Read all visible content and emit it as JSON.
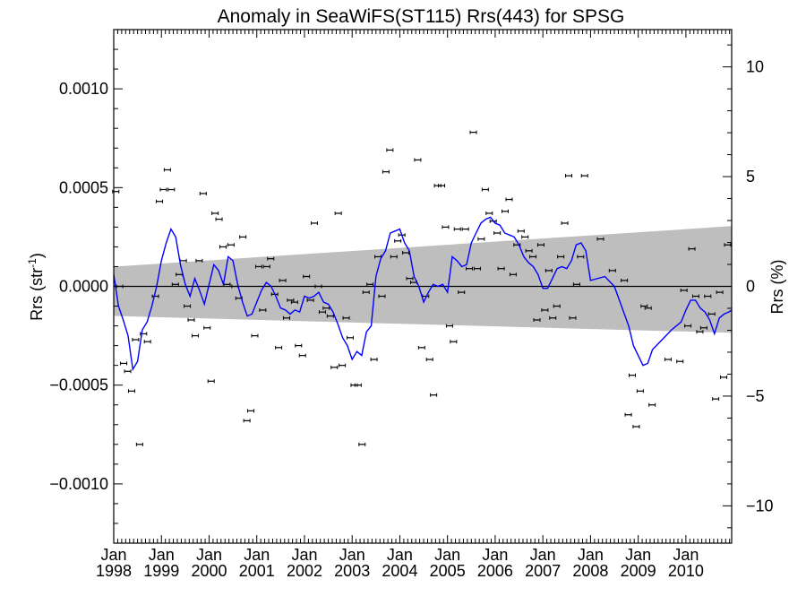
{
  "chart_data": {
    "type": "scatter",
    "title": "Anomaly in SeaWiFS(ST115) Rrs(443) for SPSG",
    "ylabel_left": "Rrs (str",
    "ylabel_left_sup": "-1",
    "ylabel_left_close": ")",
    "ylabel_right": "Rrs (%)",
    "xlim": [
      1998.0,
      2010.96
    ],
    "ylim_left": [
      -0.0013,
      0.0013
    ],
    "ylim_right": [
      -11.7,
      11.7
    ],
    "grid": false,
    "legend": "none",
    "colors": {
      "running_mean": "#0000ff",
      "uncertainty_band": "#bebebe",
      "points": "#000000",
      "zero_line": "#000000"
    },
    "x_ticks": [
      {
        "month": "Jan",
        "year": "1998",
        "x": 1998.0
      },
      {
        "month": "Jan",
        "year": "1999",
        "x": 1999.0
      },
      {
        "month": "Jan",
        "year": "2000",
        "x": 2000.0
      },
      {
        "month": "Jan",
        "year": "2001",
        "x": 2001.0
      },
      {
        "month": "Jan",
        "year": "2002",
        "x": 2002.0
      },
      {
        "month": "Jan",
        "year": "2003",
        "x": 2003.0
      },
      {
        "month": "Jan",
        "year": "2004",
        "x": 2004.0
      },
      {
        "month": "Jan",
        "year": "2005",
        "x": 2005.0
      },
      {
        "month": "Jan",
        "year": "2006",
        "x": 2006.0
      },
      {
        "month": "Jan",
        "year": "2007",
        "x": 2007.0
      },
      {
        "month": "Jan",
        "year": "2008",
        "x": 2008.0
      },
      {
        "month": "Jan",
        "year": "2009",
        "x": 2009.0
      },
      {
        "month": "Jan",
        "year": "2010",
        "x": 2010.0
      }
    ],
    "y_ticks_left": [
      {
        "label": "0.0010",
        "value": 0.001
      },
      {
        "label": "0.0005",
        "value": 0.0005
      },
      {
        "label": "0.0000",
        "value": 0.0
      },
      {
        "label": "−0.0005",
        "value": -0.0005
      },
      {
        "label": "−0.0010",
        "value": -0.001
      }
    ],
    "y_ticks_right": [
      {
        "label": "10",
        "value": 10
      },
      {
        "label": "5",
        "value": 5
      },
      {
        "label": "0",
        "value": 0
      },
      {
        "label": "−5",
        "value": -5
      },
      {
        "label": "−10",
        "value": -10
      }
    ],
    "band": {
      "x": [
        1998.0,
        2010.96
      ],
      "upper": [
        0.0001,
        0.000305
      ],
      "lower": [
        -0.00015,
        -0.000235
      ]
    },
    "points": [
      [
        1998.042,
        0.00048
      ],
      [
        1998.125,
        0.0
      ],
      [
        1998.208,
        -0.00039
      ],
      [
        1998.292,
        -0.00043
      ],
      [
        1998.375,
        -0.00053
      ],
      [
        1998.458,
        -0.00027
      ],
      [
        1998.542,
        -0.0008
      ],
      [
        1998.625,
        -0.00024
      ],
      [
        1998.708,
        -0.00028
      ],
      [
        1998.875,
        -5e-05
      ],
      [
        1998.958,
        0.00043
      ],
      [
        1999.042,
        0.00049
      ],
      [
        1999.125,
        0.00059
      ],
      [
        1999.208,
        0.00049
      ],
      [
        1999.292,
        1e-05
      ],
      [
        1999.375,
        6e-05
      ],
      [
        1999.458,
        0.00013
      ],
      [
        1999.542,
        -0.0001
      ],
      [
        1999.625,
        -0.00017
      ],
      [
        1999.708,
        -0.00025
      ],
      [
        1999.792,
        0.00013
      ],
      [
        1999.875,
        0.00047
      ],
      [
        1999.958,
        -0.00021
      ],
      [
        2000.042,
        -0.00048
      ],
      [
        2000.125,
        0.00037
      ],
      [
        2000.208,
        0.00034
      ],
      [
        2000.292,
        0.0002
      ],
      [
        2000.375,
        1e-05
      ],
      [
        2000.458,
        0.00021
      ],
      [
        2000.542,
        0.0
      ],
      [
        2000.625,
        -6e-05
      ],
      [
        2000.708,
        0.00025
      ],
      [
        2000.792,
        -0.00068
      ],
      [
        2000.875,
        -0.00063
      ],
      [
        2000.958,
        -0.00025
      ],
      [
        2001.042,
        0.0001
      ],
      [
        2001.125,
        -0.00012
      ],
      [
        2001.208,
        0.0001
      ],
      [
        2001.292,
        0.00014
      ],
      [
        2001.375,
        -4e-05
      ],
      [
        2001.458,
        -0.00031
      ],
      [
        2001.542,
        3e-05
      ],
      [
        2001.625,
        -0.00016
      ],
      [
        2001.708,
        -7e-05
      ],
      [
        2001.792,
        -8e-05
      ],
      [
        2001.875,
        -0.0003
      ],
      [
        2001.958,
        -0.00035
      ],
      [
        2002.042,
        5e-05
      ],
      [
        2002.125,
        -7e-05
      ],
      [
        2002.208,
        0.00032
      ],
      [
        2002.292,
        0.0
      ],
      [
        2002.375,
        -0.00013
      ],
      [
        2002.458,
        -0.00011
      ],
      [
        2002.542,
        -0.00015
      ],
      [
        2002.625,
        -0.00041
      ],
      [
        2002.708,
        0.00037
      ],
      [
        2002.792,
        -0.0004
      ],
      [
        2002.875,
        -0.00016
      ],
      [
        2002.958,
        -0.00026
      ],
      [
        2003.042,
        -0.0005
      ],
      [
        2003.125,
        -0.0005
      ],
      [
        2003.208,
        -0.0008
      ],
      [
        2003.292,
        -3e-05
      ],
      [
        2003.375,
        1e-05
      ],
      [
        2003.458,
        -0.00037
      ],
      [
        2003.542,
        0.00015
      ],
      [
        2003.625,
        -5e-05
      ],
      [
        2003.708,
        0.00058
      ],
      [
        2003.792,
        0.00069
      ],
      [
        2003.875,
        0.00015
      ],
      [
        2003.958,
        0.00023
      ],
      [
        2004.042,
        0.00026
      ],
      [
        2004.125,
        0.00017
      ],
      [
        2004.208,
        4e-05
      ],
      [
        2004.292,
        2e-05
      ],
      [
        2004.375,
        0.00064
      ],
      [
        2004.458,
        -0.00031
      ],
      [
        2004.542,
        -5e-05
      ],
      [
        2004.625,
        -0.00037
      ],
      [
        2004.708,
        -0.00055
      ],
      [
        2004.792,
        0.00051
      ],
      [
        2004.875,
        0.00051
      ],
      [
        2004.958,
        0.0003
      ],
      [
        2005.042,
        -0.0002
      ],
      [
        2005.125,
        -0.00028
      ],
      [
        2005.208,
        0.00029
      ],
      [
        2005.292,
        -3e-05
      ],
      [
        2005.375,
        0.00029
      ],
      [
        2005.458,
        9e-05
      ],
      [
        2005.542,
        0.00078
      ],
      [
        2005.625,
        9e-05
      ],
      [
        2005.708,
        0.00024
      ],
      [
        2005.792,
        0.00049
      ],
      [
        2005.875,
        0.00037
      ],
      [
        2005.958,
        0.00033
      ],
      [
        2006.042,
        0.00027
      ],
      [
        2006.125,
        9e-05
      ],
      [
        2006.208,
        0.00038
      ],
      [
        2006.292,
        0.00044
      ],
      [
        2006.375,
        6e-05
      ],
      [
        2006.458,
        0.00021
      ],
      [
        2006.542,
        0.00028
      ],
      [
        2006.625,
        0.00025
      ],
      [
        2006.708,
        0.00018
      ],
      [
        2006.792,
        0.00015
      ],
      [
        2006.875,
        -0.00017
      ],
      [
        2006.958,
        0.00021
      ],
      [
        2007.042,
        -0.00012
      ],
      [
        2007.125,
        8e-05
      ],
      [
        2007.208,
        -0.00016
      ],
      [
        2007.292,
        -0.0001
      ],
      [
        2007.375,
        0.00015
      ],
      [
        2007.458,
        0.00032
      ],
      [
        2007.542,
        0.00056
      ],
      [
        2007.625,
        -0.00016
      ],
      [
        2007.708,
        1e-05
      ],
      [
        2007.792,
        0.00015
      ],
      [
        2007.875,
        0.00056
      ],
      [
        2008.208,
        0.00024
      ],
      [
        2008.458,
        8e-05
      ],
      [
        2008.708,
        3e-05
      ],
      [
        2008.792,
        -0.00065
      ],
      [
        2008.875,
        -0.00045
      ],
      [
        2008.958,
        -0.00071
      ],
      [
        2009.042,
        -0.00053
      ],
      [
        2009.125,
        -0.0001
      ],
      [
        2009.208,
        -0.00011
      ],
      [
        2009.292,
        -0.0006
      ],
      [
        2009.625,
        -0.00037
      ],
      [
        2009.875,
        -0.00038
      ],
      [
        2009.958,
        -2e-05
      ],
      [
        2010.042,
        -0.0002
      ],
      [
        2010.125,
        0.00019
      ],
      [
        2010.208,
        -5e-05
      ],
      [
        2010.292,
        -0.00023
      ],
      [
        2010.375,
        -0.00021
      ],
      [
        2010.458,
        -5e-05
      ],
      [
        2010.542,
        -0.00014
      ],
      [
        2010.625,
        -0.00057
      ],
      [
        2010.708,
        -3e-05
      ],
      [
        2010.792,
        -0.00046
      ],
      [
        2010.875,
        0.00021
      ]
    ],
    "running_mean": [
      [
        1998.0,
        6e-05
      ],
      [
        1998.1,
        -0.0001
      ],
      [
        1998.2,
        -0.00017
      ],
      [
        1998.3,
        -0.00025
      ],
      [
        1998.4,
        -0.00042
      ],
      [
        1998.5,
        -0.00038
      ],
      [
        1998.6,
        -0.00022
      ],
      [
        1998.7,
        -0.00018
      ],
      [
        1998.8,
        -0.0001
      ],
      [
        1998.9,
        0.0
      ],
      [
        1999.0,
        0.00013
      ],
      [
        1999.1,
        0.00022
      ],
      [
        1999.2,
        0.00029
      ],
      [
        1999.3,
        0.00025
      ],
      [
        1999.4,
        0.00011
      ],
      [
        1999.5,
        1e-05
      ],
      [
        1999.6,
        -5e-05
      ],
      [
        1999.7,
        4e-05
      ],
      [
        1999.8,
        -2e-05
      ],
      [
        1999.9,
        -9e-05
      ],
      [
        2000.0,
        1e-05
      ],
      [
        2000.1,
        0.00011
      ],
      [
        2000.2,
        8e-05
      ],
      [
        2000.3,
        1e-05
      ],
      [
        2000.4,
        0.00015
      ],
      [
        2000.5,
        0.00013
      ],
      [
        2000.6,
        1e-05
      ],
      [
        2000.7,
        -8e-05
      ],
      [
        2000.8,
        -0.00015
      ],
      [
        2000.9,
        -0.00014
      ],
      [
        2001.0,
        -8e-05
      ],
      [
        2001.1,
        -2e-05
      ],
      [
        2001.2,
        2e-05
      ],
      [
        2001.3,
        0.0
      ],
      [
        2001.4,
        -5e-05
      ],
      [
        2001.5,
        -0.00011
      ],
      [
        2001.6,
        -0.00012
      ],
      [
        2001.7,
        -0.00014
      ],
      [
        2001.8,
        -0.00012
      ],
      [
        2001.9,
        -0.00013
      ],
      [
        2002.0,
        -5e-05
      ],
      [
        2002.1,
        -6e-05
      ],
      [
        2002.2,
        -5e-05
      ],
      [
        2002.3,
        -3e-05
      ],
      [
        2002.4,
        -8e-05
      ],
      [
        2002.5,
        -9e-05
      ],
      [
        2002.6,
        -0.00013
      ],
      [
        2002.7,
        -0.00019
      ],
      [
        2002.8,
        -0.00026
      ],
      [
        2002.9,
        -0.0003
      ],
      [
        2003.0,
        -0.00037
      ],
      [
        2003.1,
        -0.00033
      ],
      [
        2003.2,
        -0.00035
      ],
      [
        2003.3,
        -0.00023
      ],
      [
        2003.4,
        -0.0002
      ],
      [
        2003.5,
        5e-05
      ],
      [
        2003.6,
        0.00014
      ],
      [
        2003.7,
        0.00018
      ],
      [
        2003.8,
        0.00027
      ],
      [
        2003.9,
        0.00028
      ],
      [
        2004.0,
        0.00029
      ],
      [
        2004.1,
        0.00022
      ],
      [
        2004.2,
        0.00018
      ],
      [
        2004.3,
        5e-05
      ],
      [
        2004.4,
        0.0
      ],
      [
        2004.5,
        -8e-05
      ],
      [
        2004.6,
        -3e-05
      ],
      [
        2004.7,
        1e-05
      ],
      [
        2004.8,
        0.0
      ],
      [
        2004.9,
        1e-05
      ],
      [
        2005.0,
        -3e-05
      ],
      [
        2005.1,
        0.00015
      ],
      [
        2005.2,
        0.00013
      ],
      [
        2005.3,
        0.0001
      ],
      [
        2005.4,
        0.00011
      ],
      [
        2005.5,
        0.00022
      ],
      [
        2005.6,
        0.00027
      ],
      [
        2005.7,
        0.00032
      ],
      [
        2005.8,
        0.00034
      ],
      [
        2005.9,
        0.00035
      ],
      [
        2006.0,
        0.00032
      ],
      [
        2006.1,
        0.00031
      ],
      [
        2006.2,
        0.00027
      ],
      [
        2006.3,
        0.00026
      ],
      [
        2006.4,
        0.00025
      ],
      [
        2006.5,
        0.00021
      ],
      [
        2006.6,
        0.00015
      ],
      [
        2006.7,
        0.00012
      ],
      [
        2006.8,
        0.0001
      ],
      [
        2006.9,
        6e-05
      ],
      [
        2007.0,
        -1e-05
      ],
      [
        2007.1,
        -1e-05
      ],
      [
        2007.2,
        4e-05
      ],
      [
        2007.3,
        9e-05
      ],
      [
        2007.4,
        0.0001
      ],
      [
        2007.5,
        9e-05
      ],
      [
        2007.6,
        0.00013
      ],
      [
        2007.7,
        0.00021
      ],
      [
        2007.8,
        0.00022
      ],
      [
        2007.9,
        0.00018
      ],
      [
        2008.0,
        3e-05
      ],
      [
        2008.3,
        5e-05
      ],
      [
        2008.5,
        0.0
      ],
      [
        2008.8,
        -0.0002
      ],
      [
        2008.9,
        -0.0003
      ],
      [
        2009.0,
        -0.00035
      ],
      [
        2009.1,
        -0.0004
      ],
      [
        2009.2,
        -0.00039
      ],
      [
        2009.3,
        -0.00032
      ],
      [
        2009.5,
        -0.00027
      ],
      [
        2009.7,
        -0.00022
      ],
      [
        2009.9,
        -0.00018
      ],
      [
        2010.0,
        -0.00012
      ],
      [
        2010.1,
        -7e-05
      ],
      [
        2010.2,
        -7e-05
      ],
      [
        2010.3,
        -0.00011
      ],
      [
        2010.4,
        -0.00013
      ],
      [
        2010.5,
        -0.00017
      ],
      [
        2010.6,
        -0.00024
      ],
      [
        2010.7,
        -0.00016
      ],
      [
        2010.8,
        -0.00014
      ],
      [
        2010.9,
        -0.00013
      ],
      [
        2010.96,
        -0.00012
      ]
    ]
  }
}
